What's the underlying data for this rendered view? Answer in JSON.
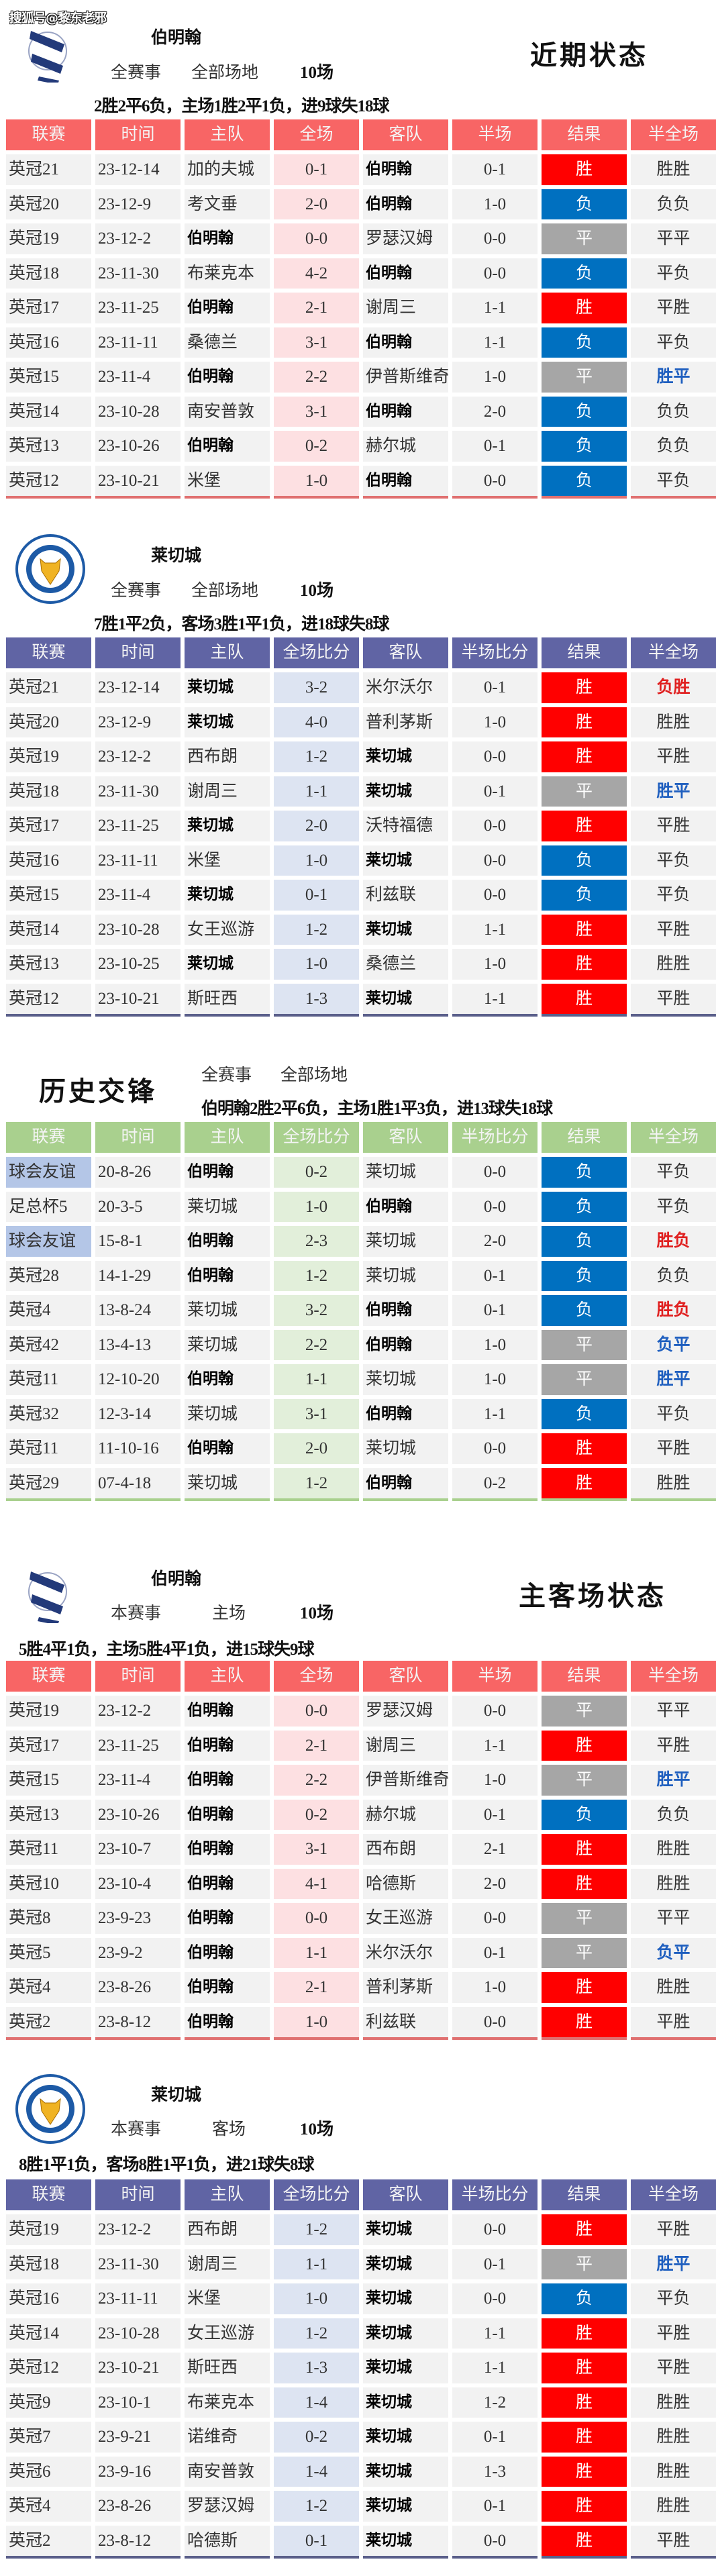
{
  "watermark": "搜狐号@黎东老邪",
  "colors": {
    "win": "#ff0000",
    "loss": "#0070c0",
    "draw": "#a6a6a6",
    "hf_red": "#e02020",
    "hf_blue": "#1f5fbf",
    "friendly_bg": "#b4c6e7"
  },
  "sections": [
    {
      "title": "近期状态",
      "team": "伯明翰",
      "logo": "birmingham-city-crest",
      "filters": [
        "全赛事",
        "全部场地",
        "10场"
      ],
      "summary": "2胜2平6负，主场1胜2平1负，进9球失18球",
      "theme": {
        "header": "#f86565",
        "score_bg": "#fde0e2",
        "line": "#e07070"
      },
      "headers": [
        "联赛",
        "时间",
        "主队",
        "全场",
        "客队",
        "半场",
        "结果",
        "半全场"
      ],
      "rows": [
        [
          "英冠21",
          "23-12-14",
          "加的夫城",
          "0-1",
          "伯明翰",
          "0-1",
          "胜",
          "胜胜"
        ],
        [
          "英冠20",
          "23-12-9",
          "考文垂",
          "2-0",
          "伯明翰",
          "1-0",
          "负",
          "负负"
        ],
        [
          "英冠19",
          "23-12-2",
          "伯明翰",
          "0-0",
          "罗瑟汉姆",
          "0-0",
          "平",
          "平平"
        ],
        [
          "英冠18",
          "23-11-30",
          "布莱克本",
          "4-2",
          "伯明翰",
          "0-0",
          "负",
          "平负"
        ],
        [
          "英冠17",
          "23-11-25",
          "伯明翰",
          "2-1",
          "谢周三",
          "1-1",
          "胜",
          "平胜"
        ],
        [
          "英冠16",
          "23-11-11",
          "桑德兰",
          "3-1",
          "伯明翰",
          "1-1",
          "负",
          "平负"
        ],
        [
          "英冠15",
          "23-11-4",
          "伯明翰",
          "2-2",
          "伊普斯维奇",
          "1-0",
          "平",
          "胜平"
        ],
        [
          "英冠14",
          "23-10-28",
          "南安普敦",
          "3-1",
          "伯明翰",
          "2-0",
          "负",
          "负负"
        ],
        [
          "英冠13",
          "23-10-26",
          "伯明翰",
          "0-2",
          "赫尔城",
          "0-1",
          "负",
          "负负"
        ],
        [
          "英冠12",
          "23-10-21",
          "米堡",
          "1-0",
          "伯明翰",
          "0-0",
          "负",
          "平负"
        ]
      ]
    },
    {
      "team": "莱切城",
      "logo": "leicester-city-crest",
      "filters": [
        "全赛事",
        "全部场地",
        "10场"
      ],
      "summary": "7胜1平2负，客场3胜1平1负，进18球失8球",
      "theme": {
        "header": "#6064a4",
        "score_bg": "#dde4f2",
        "line": "#5a5f8a"
      },
      "headers": [
        "联赛",
        "时间",
        "主队",
        "全场比分",
        "客队",
        "半场比分",
        "结果",
        "半全场"
      ],
      "rows": [
        [
          "英冠21",
          "23-12-14",
          "莱切城",
          "3-2",
          "米尔沃尔",
          "0-1",
          "胜",
          "负胜"
        ],
        [
          "英冠20",
          "23-12-9",
          "莱切城",
          "4-0",
          "普利茅斯",
          "1-0",
          "胜",
          "胜胜"
        ],
        [
          "英冠19",
          "23-12-2",
          "西布朗",
          "1-2",
          "莱切城",
          "0-0",
          "胜",
          "平胜"
        ],
        [
          "英冠18",
          "23-11-30",
          "谢周三",
          "1-1",
          "莱切城",
          "0-1",
          "平",
          "胜平"
        ],
        [
          "英冠17",
          "23-11-25",
          "莱切城",
          "2-0",
          "沃特福德",
          "0-0",
          "胜",
          "平胜"
        ],
        [
          "英冠16",
          "23-11-11",
          "米堡",
          "1-0",
          "莱切城",
          "0-0",
          "负",
          "平负"
        ],
        [
          "英冠15",
          "23-11-4",
          "莱切城",
          "0-1",
          "利兹联",
          "0-0",
          "负",
          "平负"
        ],
        [
          "英冠14",
          "23-10-28",
          "女王巡游",
          "1-2",
          "莱切城",
          "1-1",
          "胜",
          "平胜"
        ],
        [
          "英冠13",
          "23-10-25",
          "莱切城",
          "1-0",
          "桑德兰",
          "1-0",
          "胜",
          "胜胜"
        ],
        [
          "英冠12",
          "23-10-21",
          "斯旺西",
          "1-3",
          "莱切城",
          "1-1",
          "胜",
          "平胜"
        ]
      ]
    },
    {
      "title": "历史交锋",
      "team": "伯明翰",
      "filters": [
        "全赛事",
        "全部场地"
      ],
      "summary": "伯明翰2胜2平6负，主场1胜1平3负，进13球失18球",
      "theme": {
        "header": "#a9d08e",
        "score_bg": "#e2efda",
        "line": "#a9d08e"
      },
      "headers": [
        "联赛",
        "时间",
        "主队",
        "全场比分",
        "客队",
        "半场比分",
        "结果",
        "半全场"
      ],
      "rows": [
        [
          "球会友谊",
          "20-8-26",
          "伯明翰",
          "0-2",
          "莱切城",
          "0-0",
          "负",
          "平负"
        ],
        [
          "足总杯5",
          "20-3-5",
          "莱切城",
          "1-0",
          "伯明翰",
          "0-0",
          "负",
          "平负"
        ],
        [
          "球会友谊",
          "15-8-1",
          "伯明翰",
          "2-3",
          "莱切城",
          "2-0",
          "负",
          "胜负"
        ],
        [
          "英冠28",
          "14-1-29",
          "伯明翰",
          "1-2",
          "莱切城",
          "0-1",
          "负",
          "负负"
        ],
        [
          "英冠4",
          "13-8-24",
          "莱切城",
          "3-2",
          "伯明翰",
          "0-1",
          "负",
          "胜负"
        ],
        [
          "英冠42",
          "13-4-13",
          "莱切城",
          "2-2",
          "伯明翰",
          "1-0",
          "平",
          "负平"
        ],
        [
          "英冠11",
          "12-10-20",
          "伯明翰",
          "1-1",
          "莱切城",
          "1-0",
          "平",
          "胜平"
        ],
        [
          "英冠32",
          "12-3-14",
          "莱切城",
          "3-1",
          "伯明翰",
          "1-1",
          "负",
          "平负"
        ],
        [
          "英冠11",
          "11-10-16",
          "伯明翰",
          "2-0",
          "莱切城",
          "0-0",
          "胜",
          "平胜"
        ],
        [
          "英冠29",
          "07-4-18",
          "莱切城",
          "1-2",
          "伯明翰",
          "0-2",
          "胜",
          "胜胜"
        ]
      ]
    },
    {
      "title": "主客场状态",
      "team": "伯明翰",
      "logo": "birmingham-city-crest",
      "filters": [
        "本赛事",
        "主场",
        "10场"
      ],
      "summary": "5胜4平1负，主场5胜4平1负，进15球失9球",
      "theme": {
        "header": "#f86565",
        "score_bg": "#fde0e2",
        "line": "#e07070"
      },
      "headers": [
        "联赛",
        "时间",
        "主队",
        "全场",
        "客队",
        "半场",
        "结果",
        "半全场"
      ],
      "rows": [
        [
          "英冠19",
          "23-12-2",
          "伯明翰",
          "0-0",
          "罗瑟汉姆",
          "0-0",
          "平",
          "平平"
        ],
        [
          "英冠17",
          "23-11-25",
          "伯明翰",
          "2-1",
          "谢周三",
          "1-1",
          "胜",
          "平胜"
        ],
        [
          "英冠15",
          "23-11-4",
          "伯明翰",
          "2-2",
          "伊普斯维奇",
          "1-0",
          "平",
          "胜平"
        ],
        [
          "英冠13",
          "23-10-26",
          "伯明翰",
          "0-2",
          "赫尔城",
          "0-1",
          "负",
          "负负"
        ],
        [
          "英冠11",
          "23-10-7",
          "伯明翰",
          "3-1",
          "西布朗",
          "2-1",
          "胜",
          "胜胜"
        ],
        [
          "英冠10",
          "23-10-4",
          "伯明翰",
          "4-1",
          "哈德斯",
          "2-0",
          "胜",
          "胜胜"
        ],
        [
          "英冠8",
          "23-9-23",
          "伯明翰",
          "0-0",
          "女王巡游",
          "0-0",
          "平",
          "平平"
        ],
        [
          "英冠5",
          "23-9-2",
          "伯明翰",
          "1-1",
          "米尔沃尔",
          "0-1",
          "平",
          "负平"
        ],
        [
          "英冠4",
          "23-8-26",
          "伯明翰",
          "2-1",
          "普利茅斯",
          "1-0",
          "胜",
          "胜胜"
        ],
        [
          "英冠2",
          "23-8-12",
          "伯明翰",
          "1-0",
          "利兹联",
          "0-0",
          "胜",
          "平胜"
        ]
      ]
    },
    {
      "team": "莱切城",
      "logo": "leicester-city-crest",
      "filters": [
        "本赛事",
        "客场",
        "10场"
      ],
      "summary": "8胜1平1负，客场8胜1平1负，进21球失8球",
      "theme": {
        "header": "#6064a4",
        "score_bg": "#dde4f2",
        "line": "#5a5f8a"
      },
      "headers": [
        "联赛",
        "时间",
        "主队",
        "全场比分",
        "客队",
        "半场比分",
        "结果",
        "半全场"
      ],
      "rows": [
        [
          "英冠19",
          "23-12-2",
          "西布朗",
          "1-2",
          "莱切城",
          "0-0",
          "胜",
          "平胜"
        ],
        [
          "英冠18",
          "23-11-30",
          "谢周三",
          "1-1",
          "莱切城",
          "0-1",
          "平",
          "胜平"
        ],
        [
          "英冠16",
          "23-11-11",
          "米堡",
          "1-0",
          "莱切城",
          "0-0",
          "负",
          "平负"
        ],
        [
          "英冠14",
          "23-10-28",
          "女王巡游",
          "1-2",
          "莱切城",
          "1-1",
          "胜",
          "平胜"
        ],
        [
          "英冠12",
          "23-10-21",
          "斯旺西",
          "1-3",
          "莱切城",
          "1-1",
          "胜",
          "平胜"
        ],
        [
          "英冠9",
          "23-10-1",
          "布莱克本",
          "1-4",
          "莱切城",
          "1-2",
          "胜",
          "胜胜"
        ],
        [
          "英冠7",
          "23-9-21",
          "诺维奇",
          "0-2",
          "莱切城",
          "0-1",
          "胜",
          "胜胜"
        ],
        [
          "英冠6",
          "23-9-16",
          "南安普敦",
          "1-4",
          "莱切城",
          "1-3",
          "胜",
          "胜胜"
        ],
        [
          "英冠4",
          "23-8-26",
          "罗瑟汉姆",
          "1-2",
          "莱切城",
          "0-1",
          "胜",
          "胜胜"
        ],
        [
          "英冠2",
          "23-8-12",
          "哈德斯",
          "0-1",
          "莱切城",
          "0-0",
          "胜",
          "平胜"
        ]
      ]
    }
  ]
}
